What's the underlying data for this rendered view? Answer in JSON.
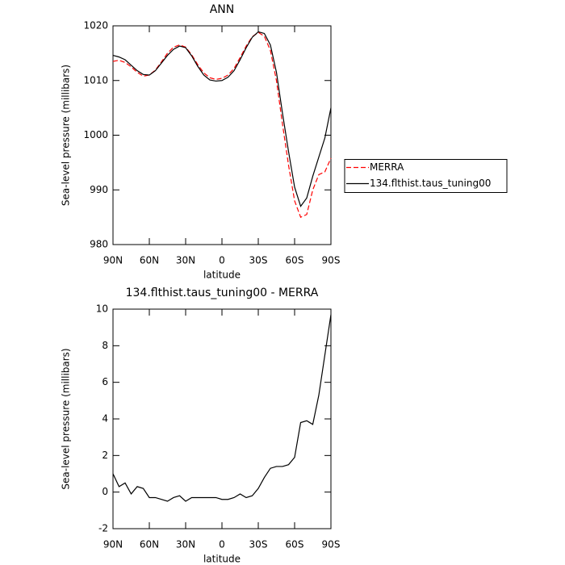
{
  "chart_data": [
    {
      "type": "line",
      "title": "ANN",
      "ylabel": "Sea-level pressure (millibars)",
      "xlabel": "latitude",
      "x": [
        90,
        85,
        80,
        75,
        70,
        65,
        60,
        55,
        50,
        45,
        40,
        35,
        30,
        25,
        20,
        15,
        10,
        5,
        0,
        -5,
        -10,
        -15,
        -20,
        -25,
        -30,
        -35,
        -40,
        -45,
        -50,
        -55,
        -60,
        -65,
        -70,
        -75,
        -80,
        -85,
        -90
      ],
      "xlim": [
        90,
        -90
      ],
      "xticks": [
        {
          "value": 90,
          "label": "90N"
        },
        {
          "value": 60,
          "label": "60N"
        },
        {
          "value": 30,
          "label": "30N"
        },
        0,
        {
          "value": -30,
          "label": "30S"
        },
        {
          "value": -60,
          "label": "60S"
        },
        {
          "value": -90,
          "label": "90S"
        }
      ],
      "ylim": [
        980,
        1020
      ],
      "yticks": [
        980,
        990,
        1000,
        1010,
        1020
      ],
      "legend": "right",
      "series": [
        {
          "name": "MERRA",
          "color": "#ff0000",
          "dash": true,
          "values": [
            1013.5,
            1013.7,
            1013.3,
            1012.5,
            1011.5,
            1010.8,
            1011.0,
            1011.9,
            1013.4,
            1015.0,
            1016.1,
            1016.5,
            1016.1,
            1014.7,
            1012.9,
            1011.4,
            1010.5,
            1010.2,
            1010.4,
            1011.0,
            1012.2,
            1014.2,
            1016.3,
            1018.0,
            1018.8,
            1018.1,
            1015.5,
            1010,
            1002,
            994.5,
            988,
            985,
            985.5,
            990,
            992.8,
            993.3,
            995.8
          ]
        },
        {
          "name": "134.flthist.taus_tuning00",
          "color": "#000000",
          "dash": false,
          "values": [
            1014.6,
            1014.3,
            1013.8,
            1012.8,
            1011.8,
            1011.1,
            1011.0,
            1011.8,
            1013.2,
            1014.6,
            1015.7,
            1016.3,
            1016.0,
            1014.5,
            1012.6,
            1011.0,
            1010.1,
            1009.9,
            1010.0,
            1010.6,
            1011.8,
            1013.8,
            1016.0,
            1017.9,
            1018.9,
            1018.6,
            1016.5,
            1011.5,
            1004,
            997,
            990.5,
            987.0,
            988.5,
            992.5,
            996,
            999.5,
            1005
          ]
        }
      ]
    },
    {
      "type": "line",
      "title": "134.flthist.taus_tuning00 - MERRA",
      "ylabel": "Sea-level pressure (millibars)",
      "xlabel": "latitude",
      "x": [
        90,
        85,
        80,
        75,
        70,
        65,
        60,
        55,
        50,
        45,
        40,
        35,
        30,
        25,
        20,
        15,
        10,
        5,
        0,
        -5,
        -10,
        -15,
        -20,
        -25,
        -30,
        -35,
        -40,
        -45,
        -50,
        -55,
        -60,
        -65,
        -70,
        -75,
        -80,
        -85,
        -90
      ],
      "xlim": [
        90,
        -90
      ],
      "xticks": [
        {
          "value": 90,
          "label": "90N"
        },
        {
          "value": 60,
          "label": "60N"
        },
        {
          "value": 30,
          "label": "30N"
        },
        0,
        {
          "value": -30,
          "label": "30S"
        },
        {
          "value": -60,
          "label": "60S"
        },
        {
          "value": -90,
          "label": "90S"
        }
      ],
      "ylim": [
        -2,
        10
      ],
      "yticks": [
        -2,
        0,
        2,
        4,
        6,
        8,
        10
      ],
      "series": [
        {
          "color": "#000000",
          "dash": false,
          "values": [
            1.0,
            0.3,
            0.5,
            -0.1,
            0.3,
            0.2,
            -0.3,
            -0.3,
            -0.4,
            -0.5,
            -0.3,
            -0.2,
            -0.5,
            -0.3,
            -0.3,
            -0.3,
            -0.3,
            -0.3,
            -0.4,
            -0.4,
            -0.3,
            -0.1,
            -0.3,
            -0.2,
            0.2,
            0.8,
            1.3,
            1.4,
            1.4,
            1.5,
            1.9,
            3.8,
            3.9,
            3.7,
            5.3,
            7.5,
            9.7
          ]
        }
      ]
    }
  ]
}
